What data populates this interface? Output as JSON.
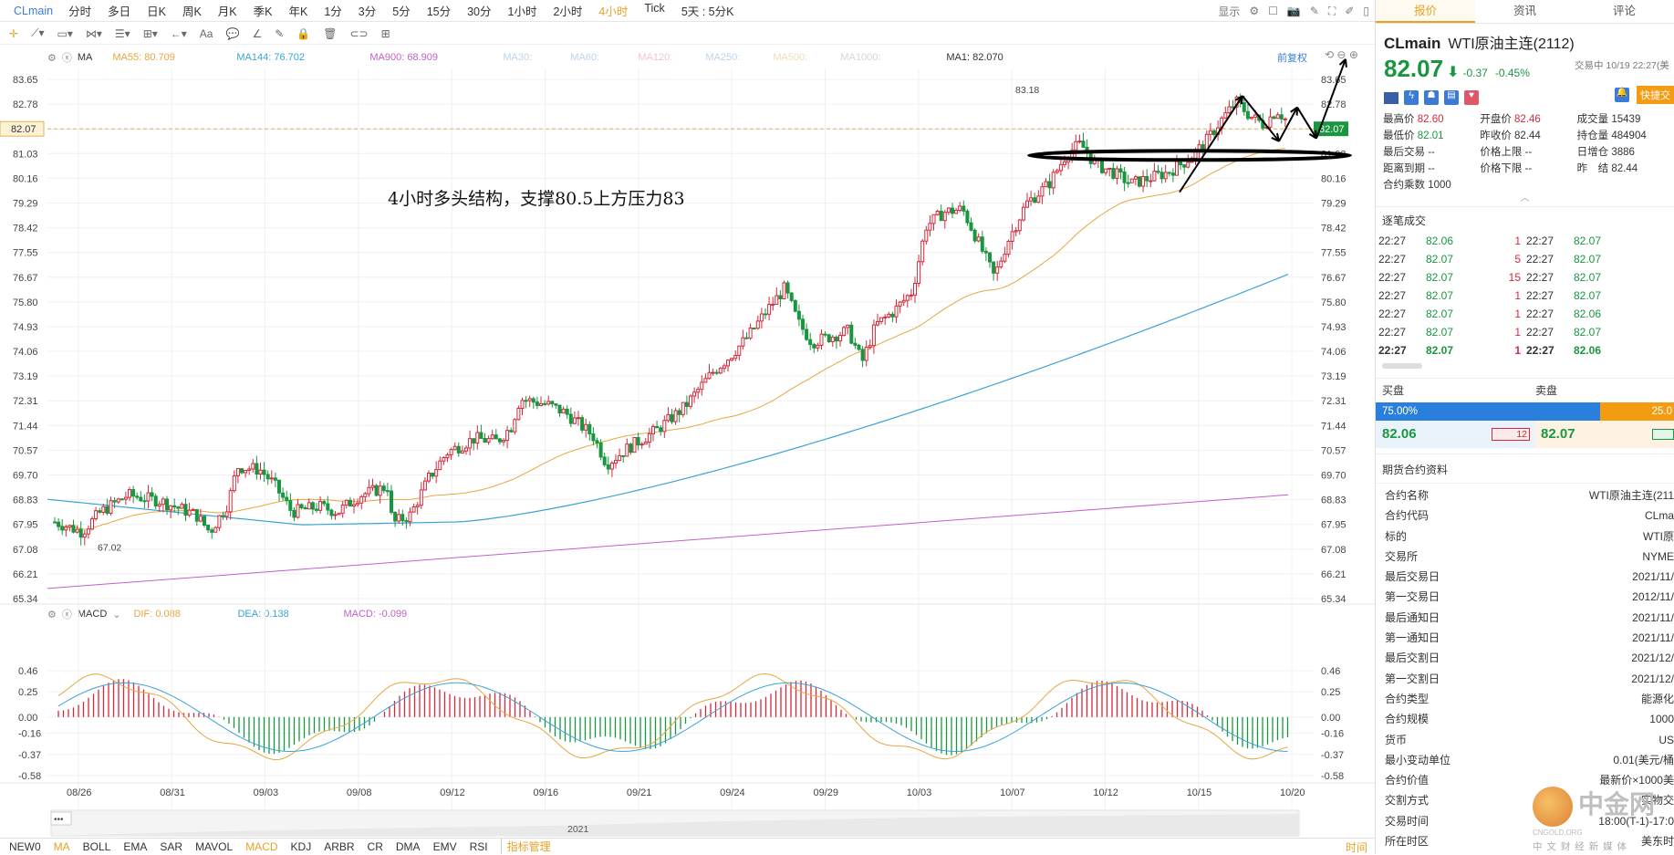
{
  "topbar": {
    "symbol": "CLmain",
    "timeframes": [
      "分时",
      "多日",
      "日K",
      "周K",
      "月K",
      "季K",
      "年K",
      "1分",
      "3分",
      "5分",
      "15分",
      "30分",
      "1小时",
      "2小时",
      "4小时",
      "Tick",
      "5天 : 5分K"
    ],
    "active_index": 14,
    "display_label": "显示"
  },
  "legend_main": {
    "name": "MA",
    "ma55": "MA55: 80.709",
    "ma144": "MA144: 76.702",
    "ma900": "MA900: 68.909",
    "ma30": "MA30:",
    "ma60": "MA60:",
    "ma120": "MA120:",
    "ma250": "MA250:",
    "ma500": "MA500:",
    "ma1000": "MA1000:",
    "ma1": "MA1: 82.070",
    "adjust": "前复权"
  },
  "legend_macd": {
    "name": "MACD",
    "dif": "DIF: 0.088",
    "dea": "DEA: 0.138",
    "macd": "MACD: -0.099"
  },
  "annotation": "4小时多头结构，支撑80.5上方压力83",
  "price_axis": [
    "83.65",
    "82.78",
    "81.90",
    "81.03",
    "80.16",
    "79.29",
    "78.42",
    "77.55",
    "76.67",
    "75.80",
    "74.93",
    "74.06",
    "73.19",
    "72.31",
    "71.44",
    "70.57",
    "69.70",
    "68.83",
    "67.95",
    "67.08",
    "66.21",
    "65.34"
  ],
  "current_price_tag": "82.07",
  "high_label": "83.18",
  "low_label": "67.02",
  "macd_axis": [
    "0.46",
    "0.25",
    "0.00",
    "-0.16",
    "-0.37",
    "-0.58"
  ],
  "date_axis": [
    "08/26",
    "08/31",
    "09/03",
    "09/08",
    "09/12",
    "09/16",
    "09/21",
    "09/24",
    "09/29",
    "10/03",
    "10/07",
    "10/12",
    "10/15",
    "10/20"
  ],
  "navigator_year": "2021",
  "colors": {
    "up": "#d4293a",
    "down": "#1a9641",
    "ma55": "#e7a640",
    "ma144": "#3aa3d6",
    "ma900": "#c35fc9",
    "accent": "#e7a224",
    "blue": "#3a7bd5"
  },
  "chart_data": {
    "type": "candlestick",
    "interval": "4小时",
    "x_range": [
      "08/26",
      "10/20"
    ],
    "ylim": [
      65.34,
      83.65
    ],
    "macd_ylim": [
      -0.58,
      0.46
    ],
    "series": [
      {
        "name": "MA55",
        "last": 80.709
      },
      {
        "name": "MA144",
        "last": 76.702
      },
      {
        "name": "MA900",
        "last": 68.909
      },
      {
        "name": "MA1",
        "last": 82.07
      }
    ],
    "macd": {
      "dif": 0.088,
      "dea": 0.138,
      "macd": -0.099
    }
  },
  "bottombar": {
    "items": [
      "NEW0",
      "MA",
      "BOLL",
      "EMA",
      "SAR",
      "MAVOL",
      "MACD",
      "KDJ",
      "ARBR",
      "CR",
      "DMA",
      "EMV",
      "RSI",
      "指标管理"
    ],
    "active": [
      "MA",
      "MACD"
    ],
    "right": "时间"
  },
  "right": {
    "tabs": [
      "报价",
      "资讯",
      "评论"
    ],
    "code": "CLmain",
    "name": "WTI原油主连(2112)",
    "price": "82.07",
    "change": "-0.37",
    "change_pct": "-0.45%",
    "status": "交易中 10/19 22:27(美",
    "quick": "快捷交",
    "stats": [
      [
        "最高价",
        "82.60",
        "开盘价",
        "82.46",
        "成交量",
        "15439"
      ],
      [
        "最低价",
        "82.01",
        "昨收价",
        "82.44",
        "持仓量",
        "484904"
      ],
      [
        "最后交易",
        "--",
        "价格上限",
        "--",
        "日增仓",
        "3886"
      ],
      [
        "距离到期",
        "--",
        "价格下限",
        "--",
        "昨　结",
        "82.44"
      ]
    ],
    "multiplier": "合约乘数 1000",
    "ticks_title": "逐笔成交",
    "ticks": [
      [
        "22:27",
        "82.06",
        "1",
        "22:27",
        "82.07"
      ],
      [
        "22:27",
        "82.07",
        "5",
        "22:27",
        "82.07"
      ],
      [
        "22:27",
        "82.07",
        "15",
        "22:27",
        "82.07"
      ],
      [
        "22:27",
        "82.07",
        "1",
        "22:27",
        "82.07"
      ],
      [
        "22:27",
        "82.07",
        "1",
        "22:27",
        "82.06"
      ],
      [
        "22:27",
        "82.07",
        "1",
        "22:27",
        "82.07"
      ],
      [
        "22:27",
        "82.07",
        "1",
        "22:27",
        "82.06"
      ]
    ],
    "buy_label": "买盘",
    "sell_label": "卖盘",
    "buy_pct": "75.00%",
    "sell_pct": "25.0",
    "bid": "82.06",
    "bid_qty": "12",
    "ask": "82.07",
    "spec_title": "期货合约资料",
    "specs": [
      [
        "合约名称",
        "WTI原油主连(211"
      ],
      [
        "合约代码",
        "CLma"
      ],
      [
        "标的",
        "WTI原"
      ],
      [
        "交易所",
        "NYME"
      ],
      [
        "最后交易日",
        "2021/11/"
      ],
      [
        "第一交易日",
        "2012/11/"
      ],
      [
        "最后通知日",
        "2021/11/"
      ],
      [
        "第一通知日",
        "2021/11/"
      ],
      [
        "最后交割日",
        "2021/12/"
      ],
      [
        "第一交割日",
        "2021/12/"
      ],
      [
        "合约类型",
        "能源化"
      ],
      [
        "合约规模",
        "1000"
      ],
      [
        "货币",
        "US"
      ],
      [
        "最小变动单位",
        "0.01(美元/桶"
      ],
      [
        "合约价值",
        "最新价×1000美"
      ],
      [
        "交割方式",
        "实物交"
      ],
      [
        "交易时间",
        "18:00(T-1)-17:0"
      ],
      [
        "所在时区",
        "美东时"
      ]
    ]
  },
  "watermark": {
    "brand": "中金网",
    "sub": "中 文 财 经 新 媒 体",
    "site": "CNGOLD.ORG"
  }
}
